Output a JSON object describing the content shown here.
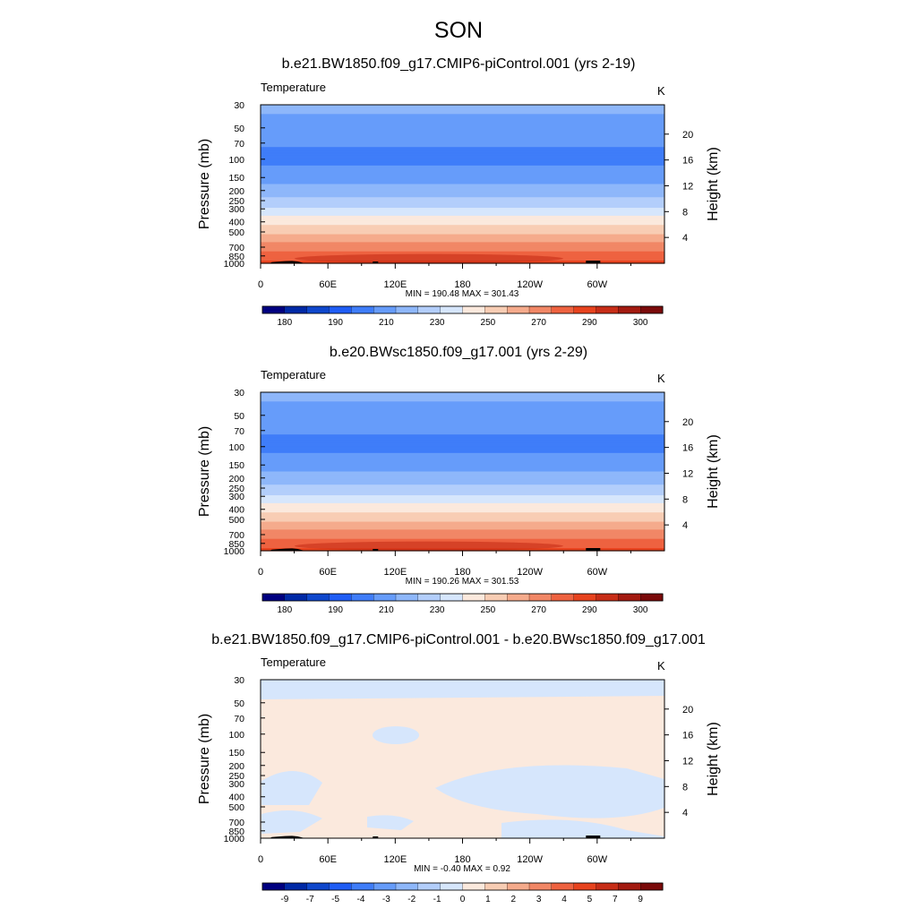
{
  "figure": {
    "title": "SON"
  },
  "colors": {
    "temperature_scale": [
      "#000080",
      "#0029a6",
      "#0f47cc",
      "#1f5df5",
      "#3f7df9",
      "#669cfa",
      "#8eb7fa",
      "#b3cefb",
      "#d6e6fc",
      "#fbe9dd",
      "#f8cdb4",
      "#f5ab8c",
      "#f18766",
      "#ee6240",
      "#e7431e",
      "#c72d17",
      "#a31a10",
      "#7a0a0a"
    ],
    "diff_scale": [
      "#000080",
      "#0029a6",
      "#0f47cc",
      "#1f5df5",
      "#3f7df9",
      "#669cfa",
      "#8eb7fa",
      "#b3cefb",
      "#d6e6fc",
      "#fbe9dd",
      "#f8cdb4",
      "#f5ab8c",
      "#f18766",
      "#ee6240",
      "#e7431e",
      "#c72d17",
      "#a31a10",
      "#7a0a0a"
    ],
    "topography": "#000000"
  },
  "chart_data": [
    {
      "type": "heatmap",
      "title": "b.e21.BW1850.f09_g17.CMIP6-piControl.001 (yrs 2-19)",
      "variable_label": "Temperature",
      "units_label": "K",
      "ylabel": "Pressure (mb)",
      "ylabel_right": "Height (km)",
      "x_ticks": [
        "0",
        "60E",
        "120E",
        "180",
        "120W",
        "60W"
      ],
      "y_ticks": [
        "30",
        "50",
        "70",
        "100",
        "150",
        "200",
        "250",
        "300",
        "400",
        "500",
        "700",
        "850",
        "1000"
      ],
      "y_ticks_right": [
        "20",
        "16",
        "12",
        "8",
        "4"
      ],
      "stats": "MIN = 190.48  MAX = 301.43",
      "min": 190.48,
      "max": 301.43,
      "y_scale": "log",
      "colorbar_labels": [
        "180",
        "190",
        "210",
        "230",
        "250",
        "270",
        "290",
        "300"
      ],
      "levels_hpa": [
        30,
        50,
        70,
        100,
        150,
        200,
        250,
        300,
        400,
        500,
        700,
        850,
        1000
      ],
      "approx_temperature_by_level": [
        213,
        206,
        201,
        197,
        205,
        215,
        222,
        232,
        246,
        258,
        275,
        286,
        292
      ]
    },
    {
      "type": "heatmap",
      "title": "b.e20.BWsc1850.f09_g17.001 (yrs 2-29)",
      "variable_label": "Temperature",
      "units_label": "K",
      "ylabel": "Pressure (mb)",
      "ylabel_right": "Height (km)",
      "x_ticks": [
        "0",
        "60E",
        "120E",
        "180",
        "120W",
        "60W"
      ],
      "y_ticks": [
        "30",
        "50",
        "70",
        "100",
        "150",
        "200",
        "250",
        "300",
        "400",
        "500",
        "700",
        "850",
        "1000"
      ],
      "y_ticks_right": [
        "20",
        "16",
        "12",
        "8",
        "4"
      ],
      "stats": "MIN = 190.26  MAX = 301.53",
      "min": 190.26,
      "max": 301.53,
      "y_scale": "log",
      "colorbar_labels": [
        "180",
        "190",
        "210",
        "230",
        "250",
        "270",
        "290",
        "300"
      ],
      "levels_hpa": [
        30,
        50,
        70,
        100,
        150,
        200,
        250,
        300,
        400,
        500,
        700,
        850,
        1000
      ],
      "approx_temperature_by_level": [
        213,
        206,
        201,
        197,
        205,
        215,
        222,
        232,
        246,
        258,
        275,
        286,
        292
      ]
    },
    {
      "type": "heatmap",
      "title": "b.e21.BW1850.f09_g17.CMIP6-piControl.001 - b.e20.BWsc1850.f09_g17.001",
      "variable_label": "Temperature",
      "units_label": "K",
      "ylabel": "Pressure (mb)",
      "ylabel_right": "Height (km)",
      "x_ticks": [
        "0",
        "60E",
        "120E",
        "180",
        "120W",
        "60W"
      ],
      "y_ticks": [
        "30",
        "50",
        "70",
        "100",
        "150",
        "200",
        "250",
        "300",
        "400",
        "500",
        "700",
        "850",
        "1000"
      ],
      "y_ticks_right": [
        "20",
        "16",
        "12",
        "8",
        "4"
      ],
      "stats": "MIN =  -0.40  MAX =   0.92",
      "min": -0.4,
      "max": 0.92,
      "y_scale": "log",
      "colorbar_labels": [
        "-9",
        "-7",
        "-5",
        "-4",
        "-3",
        "-2",
        "-1",
        "0",
        "1",
        "2",
        "3",
        "4",
        "5",
        "7",
        "9"
      ]
    }
  ]
}
